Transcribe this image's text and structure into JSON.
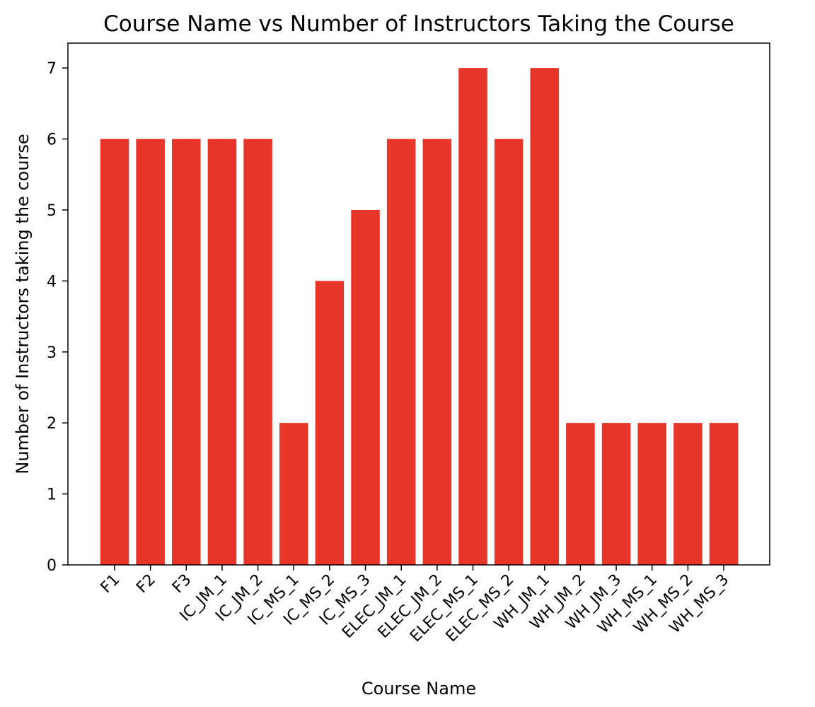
{
  "chart_data": {
    "type": "bar",
    "title": "Course Name vs Number of Instructors Taking the Course",
    "xlabel": "Course Name",
    "ylabel": "Number of Instructors taking the course",
    "categories": [
      "F1",
      "F2",
      "F3",
      "IC_JM_1",
      "IC_JM_2",
      "IC_MS_1",
      "IC_MS_2",
      "IC_MS_3",
      "ELEC_JM_1",
      "ELEC_JM_2",
      "ELEC_MS_1",
      "ELEC_MS_2",
      "WH_JM_1",
      "WH_JM_2",
      "WH_JM_3",
      "WH_MS_1",
      "WH_MS_2",
      "WH_MS_3"
    ],
    "values": [
      6,
      6,
      6,
      6,
      6,
      2,
      4,
      5,
      6,
      6,
      7,
      6,
      7,
      2,
      2,
      2,
      2,
      2
    ],
    "ylim": [
      0,
      7.35
    ],
    "yticks": [
      0,
      1,
      2,
      3,
      4,
      5,
      6,
      7
    ],
    "grid": false,
    "bar_color": "#e8352a"
  }
}
